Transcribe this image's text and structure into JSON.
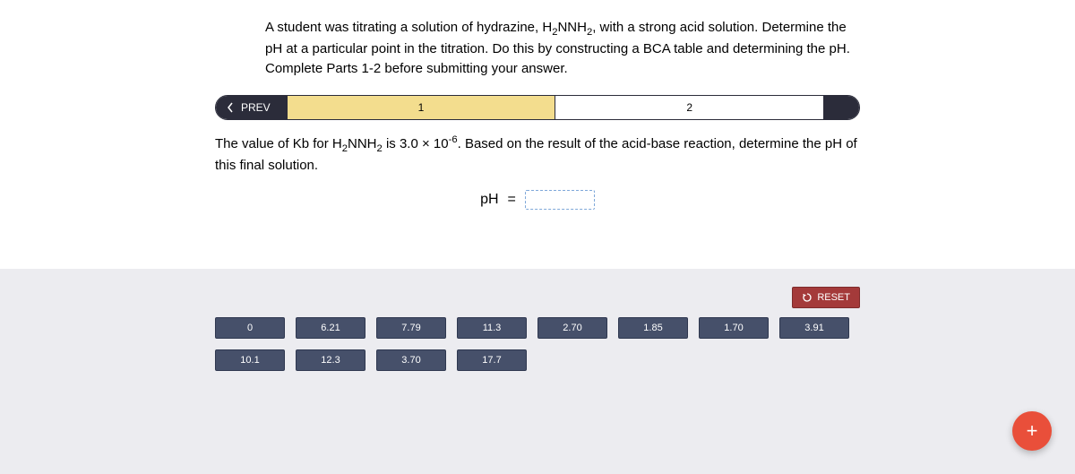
{
  "prompt": {
    "html": "A student was titrating a solution of hydrazine, H<sub>2</sub>NNH<sub>2</sub>, with a strong acid solution. Determine the pH at a particular point in the titration. Do this by constructing a BCA table and determining the pH. Complete Parts 1-2 before submitting your answer."
  },
  "nav": {
    "prev_label": "PREV",
    "segments": [
      {
        "label": "1",
        "active": true
      },
      {
        "label": "2",
        "active": false
      }
    ]
  },
  "sub_prompt": {
    "html": "The value of Kb for H<sub>2</sub>NNH<sub>2</sub> is 3.0 × 10<sup>-6</sup>. Based on the result of the acid-base reaction, determine the pH of this final solution."
  },
  "answer": {
    "lhs": "pH",
    "eq": "="
  },
  "reset_label": "RESET",
  "tiles": {
    "row1": [
      "0",
      "6.21",
      "7.79",
      "11.3",
      "2.70",
      "1.85",
      "1.70",
      "3.91"
    ],
    "row2": [
      "10.1",
      "12.3",
      "3.70",
      "17.7"
    ]
  },
  "fab_label": "+",
  "colors": {
    "pill_dark": "#2b2c3a",
    "pill_active": "#f3dd8e",
    "tray_bg": "#ececf0",
    "tile_bg": "#46506a",
    "reset_bg": "#a43a3a",
    "fab_bg": "#e94f3a",
    "slot_border": "#7fa8d9"
  }
}
